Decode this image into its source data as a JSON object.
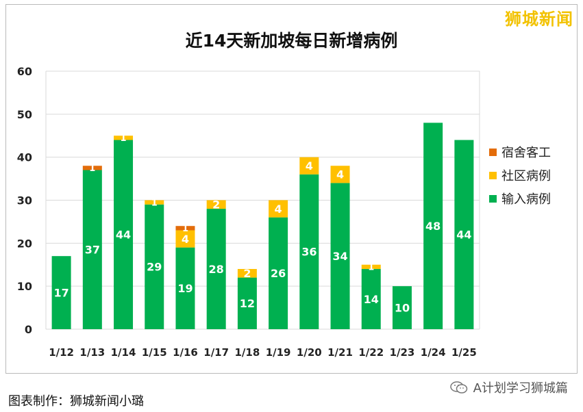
{
  "watermark": "狮城新闻",
  "footer": {
    "caption": "图表制作：狮城新闻小璐",
    "credit": "A计划学习狮城篇",
    "credit_icon": "wechat-icon"
  },
  "colors": {
    "dorm": "#e36c0a",
    "community": "#ffc000",
    "imported": "#00b050",
    "grid": "#d9d9d9"
  },
  "chart_data": {
    "type": "bar",
    "stacked": true,
    "title": "近14天新加坡每日新增病例",
    "xlabel": "",
    "ylabel": "",
    "ylim": [
      0,
      60
    ],
    "yticks": [
      0,
      10,
      20,
      30,
      40,
      50,
      60
    ],
    "grid": true,
    "legend_position": "right",
    "categories": [
      "1/12",
      "1/13",
      "1/14",
      "1/15",
      "1/16",
      "1/17",
      "1/18",
      "1/19",
      "1/20",
      "1/21",
      "1/22",
      "1/23",
      "1/24",
      "1/25"
    ],
    "series": [
      {
        "name": "输入病例",
        "color": "#00b050",
        "values": [
          17,
          37,
          44,
          29,
          19,
          28,
          12,
          26,
          36,
          34,
          14,
          10,
          48,
          44
        ]
      },
      {
        "name": "社区病例",
        "color": "#ffc000",
        "values": [
          0,
          0,
          1,
          1,
          4,
          2,
          2,
          4,
          4,
          4,
          1,
          0,
          0,
          0
        ]
      },
      {
        "name": "宿舍客工",
        "color": "#e36c0a",
        "values": [
          0,
          1,
          0,
          0,
          1,
          0,
          0,
          0,
          0,
          0,
          0,
          0,
          0,
          0
        ]
      }
    ],
    "legend_order": [
      "宿舍客工",
      "社区病例",
      "输入病例"
    ]
  }
}
